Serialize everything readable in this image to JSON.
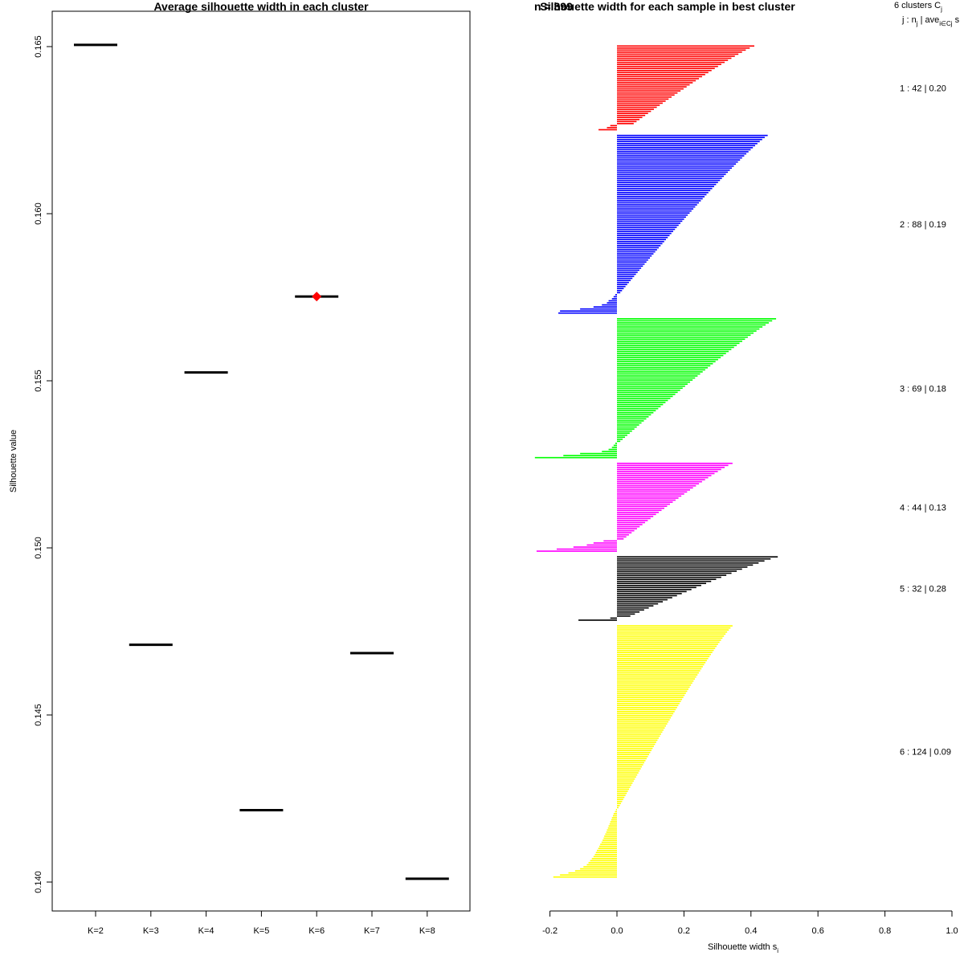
{
  "chart_data": [
    {
      "type": "scatter",
      "title": "Average silhouette width in each cluster",
      "xlabel": "",
      "ylabel": "Silhouette value",
      "categories": [
        "K=2",
        "K=3",
        "K=4",
        "K=5",
        "K=6",
        "K=7",
        "K=8"
      ],
      "values": [
        0.16505,
        0.1471,
        0.15525,
        0.14215,
        0.15752,
        0.14685,
        0.1401
      ],
      "best_index": 4,
      "best_color": "#ff0000",
      "ylim": [
        0.1392,
        0.1662
      ],
      "yticks": [
        0.14,
        0.145,
        0.15,
        0.155,
        0.16,
        0.165
      ],
      "ytick_labels": [
        "0.140",
        "0.145",
        "0.150",
        "0.155",
        "0.160",
        "0.165"
      ],
      "grid": false
    },
    {
      "type": "bar",
      "orientation": "horizontal",
      "title": "Silhouette width for each sample in best cluster",
      "title_overlap_text": "n = 399",
      "xlabel": "Silhouette width s",
      "xlabel_sub": "i",
      "xlim": [
        -0.2,
        1.0
      ],
      "xticks": [
        -0.2,
        0.0,
        0.2,
        0.4,
        0.6,
        0.8,
        1.0
      ],
      "xtick_labels": [
        "-0.2",
        "0.0",
        "0.2",
        "0.4",
        "0.6",
        "0.8",
        "1.0"
      ],
      "legend_header": {
        "line1": "6  clusters  C",
        "line1_sub": "j",
        "line2": "j :  n",
        "line2_sub": "j",
        "line2_mid": " | ave",
        "line2_sub2": "i∈Cj",
        "line2_end": "  s"
      },
      "clusters": [
        {
          "id": 1,
          "n": 42,
          "color": "#ff0000",
          "label": "1 :  42  |  0.20",
          "max": 0.41,
          "min_pos": 0.05,
          "negatives": [
            -0.02,
            -0.03,
            -0.055
          ]
        },
        {
          "id": 2,
          "n": 88,
          "color": "#0000ff",
          "label": "2 :  88  |  0.19",
          "max": 0.45,
          "min_pos": 0.01,
          "negatives": [
            -0.005,
            -0.01,
            -0.015,
            -0.025,
            -0.03,
            -0.045,
            -0.07,
            -0.11,
            -0.17,
            -0.175
          ]
        },
        {
          "id": 3,
          "n": 69,
          "color": "#00ff00",
          "label": "3 :  69  |  0.18",
          "max": 0.475,
          "min_pos": 0.01,
          "negatives": [
            -0.005,
            -0.01,
            -0.015,
            -0.025,
            -0.045,
            -0.11,
            -0.16,
            -0.245
          ]
        },
        {
          "id": 4,
          "n": 44,
          "color": "#ff00ff",
          "label": "4 :  44  |  0.13",
          "max": 0.345,
          "min_pos": 0.02,
          "negatives": [
            -0.04,
            -0.07,
            -0.09,
            -0.13,
            -0.18,
            -0.24
          ]
        },
        {
          "id": 5,
          "n": 32,
          "color": "#000000",
          "label": "5 :  32  |  0.28",
          "max": 0.48,
          "min_pos": 0.04,
          "negatives": [
            -0.02,
            -0.115
          ]
        },
        {
          "id": 6,
          "n": 124,
          "color": "#ffff00",
          "label": "6 :  124  |  0.09",
          "max": 0.345,
          "min_pos": 0.005,
          "negatives": [
            -0.003,
            -0.006,
            -0.01,
            -0.012,
            -0.015,
            -0.017,
            -0.02,
            -0.022,
            -0.025,
            -0.027,
            -0.03,
            -0.032,
            -0.035,
            -0.038,
            -0.04,
            -0.043,
            -0.046,
            -0.05,
            -0.053,
            -0.056,
            -0.06,
            -0.063,
            -0.066,
            -0.07,
            -0.075,
            -0.08,
            -0.085,
            -0.09,
            -0.1,
            -0.11,
            -0.125,
            -0.145,
            -0.17,
            -0.19
          ]
        }
      ]
    }
  ]
}
